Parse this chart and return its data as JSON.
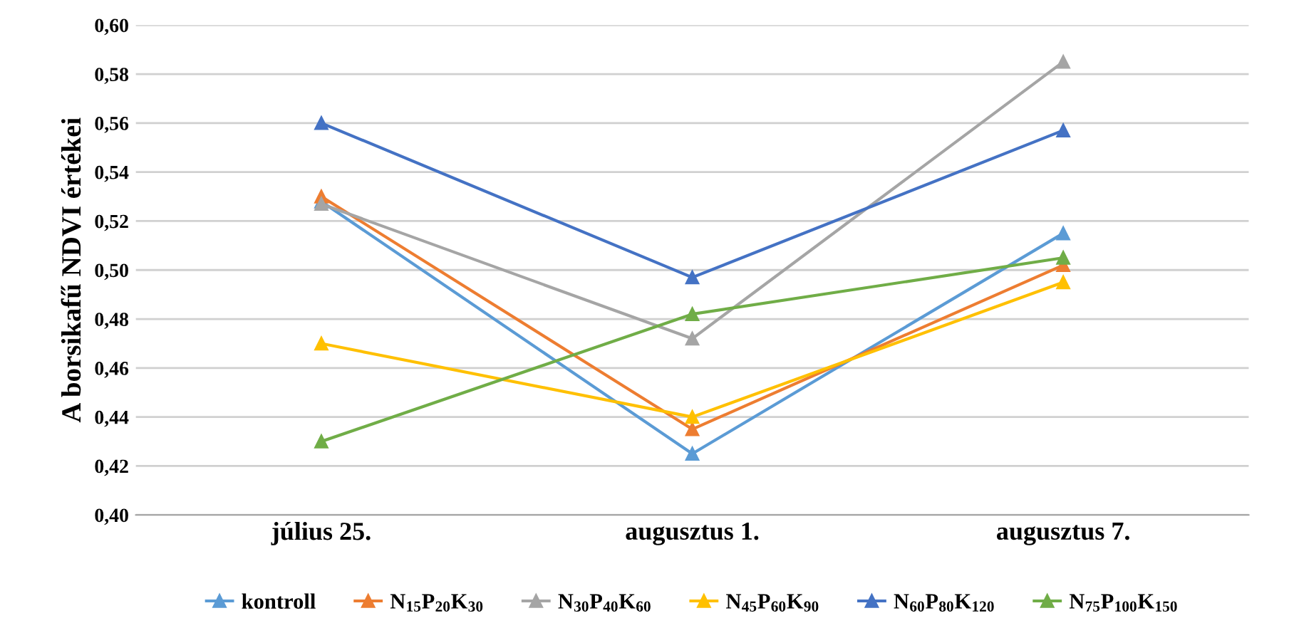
{
  "chart_data": {
    "type": "line",
    "ylabel": "A borsikafű NDVI értékei",
    "categories": [
      "július 25.",
      "augusztus 1.",
      "augusztus 7."
    ],
    "series": [
      {
        "name": "kontroll",
        "color": "#5b9bd5",
        "values": [
          0.528,
          0.425,
          0.515
        ]
      },
      {
        "name": "N$_{15}$P$_{20}$K$_{30}$",
        "color": "#ed7d31",
        "values": [
          0.53,
          0.435,
          0.502
        ]
      },
      {
        "name": "N$_{30}$P$_{40}$K$_{60}$",
        "color": "#a5a5a5",
        "values": [
          0.527,
          0.472,
          0.585
        ]
      },
      {
        "name": "N$_{45}$P$_{60}$K$_{90}$",
        "color": "#ffc000",
        "values": [
          0.47,
          0.44,
          0.495
        ]
      },
      {
        "name": "N$_{60}$P$_{80}$K$_{120}$",
        "color": "#4472c4",
        "values": [
          0.56,
          0.497,
          0.557
        ]
      },
      {
        "name": "N$_{75}$P$_{100}$K$_{150}$",
        "color": "#70ad47",
        "values": [
          0.43,
          0.482,
          0.505
        ]
      }
    ],
    "ylim": [
      0.4,
      0.6
    ],
    "yticks": [
      {
        "value": 0.4,
        "label": "0,40"
      },
      {
        "value": 0.42,
        "label": "0,42"
      },
      {
        "value": 0.44,
        "label": "0,44"
      },
      {
        "value": 0.46,
        "label": "0,46"
      },
      {
        "value": 0.48,
        "label": "0,48"
      },
      {
        "value": 0.5,
        "label": "0,50"
      },
      {
        "value": 0.52,
        "label": "0,52"
      },
      {
        "value": 0.54,
        "label": "0,54"
      },
      {
        "value": 0.56,
        "label": "0,56"
      },
      {
        "value": 0.58,
        "label": "0,58"
      },
      {
        "value": 0.6,
        "label": "0,60"
      }
    ],
    "grid": "y",
    "legend": "bottom",
    "marker": "triangle",
    "line_style": "solid"
  }
}
